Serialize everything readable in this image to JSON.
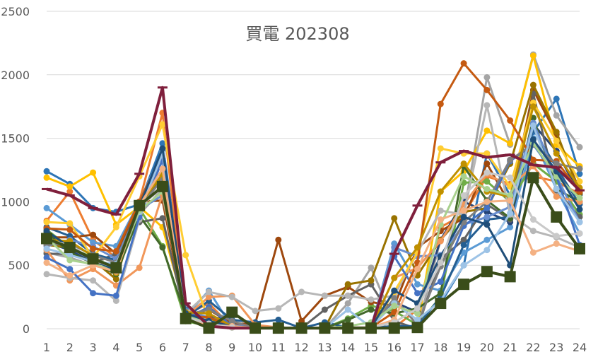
{
  "chart_data": {
    "type": "line",
    "title": "買電 202308",
    "xlabel": "",
    "ylabel": "",
    "x": [
      1,
      2,
      3,
      4,
      5,
      6,
      7,
      8,
      9,
      10,
      11,
      12,
      13,
      14,
      15,
      16,
      17,
      18,
      19,
      20,
      21,
      22,
      23,
      24
    ],
    "ylim": [
      0,
      2500
    ],
    "yticks": [
      0,
      500,
      1000,
      1500,
      2000,
      2500
    ],
    "grid": true,
    "legend": "none",
    "series": [
      {
        "color": "#2E75B6",
        "marker": "circle",
        "values": [
          1240,
          1140,
          950,
          920,
          980,
          1460,
          150,
          20,
          10,
          5,
          10,
          5,
          5,
          10,
          10,
          20,
          20,
          200,
          500,
          1380,
          1050,
          1550,
          1810,
          1220
        ]
      },
      {
        "color": "#ED7D31",
        "marker": "circle",
        "values": [
          850,
          1080,
          700,
          560,
          1000,
          1700,
          110,
          200,
          10,
          5,
          10,
          5,
          5,
          10,
          10,
          10,
          150,
          800,
          900,
          1200,
          1140,
          1200,
          1160,
          1060
        ]
      },
      {
        "color": "#A5A5A5",
        "marker": "circle",
        "values": [
          600,
          560,
          500,
          600,
          900,
          1100,
          100,
          20,
          10,
          5,
          10,
          5,
          5,
          200,
          480,
          50,
          0,
          700,
          900,
          1980,
          1450,
          2160,
          1680,
          1430
        ]
      },
      {
        "color": "#FFC000",
        "marker": "circle",
        "values": [
          1190,
          1120,
          1230,
          820,
          960,
          800,
          130,
          50,
          10,
          5,
          10,
          5,
          5,
          10,
          10,
          10,
          10,
          1080,
          1240,
          1560,
          1460,
          2150,
          1450,
          1280
        ]
      },
      {
        "color": "#5B9BD5",
        "marker": "circle",
        "values": [
          950,
          820,
          680,
          650,
          1000,
          1400,
          100,
          300,
          10,
          5,
          10,
          5,
          5,
          10,
          10,
          670,
          350,
          300,
          600,
          700,
          800,
          1500,
          1100,
          750
        ]
      },
      {
        "color": "#70AD47",
        "marker": "circle",
        "values": [
          780,
          640,
          560,
          480,
          950,
          650,
          60,
          20,
          10,
          5,
          10,
          5,
          5,
          80,
          180,
          140,
          30,
          250,
          1150,
          1160,
          1000,
          1300,
          1160,
          900
        ]
      },
      {
        "color": "#264478",
        "marker": "circle",
        "values": [
          680,
          620,
          520,
          490,
          970,
          1200,
          80,
          100,
          60,
          5,
          10,
          5,
          5,
          10,
          10,
          210,
          130,
          700,
          1000,
          920,
          840,
          1610,
          1400,
          1060
        ]
      },
      {
        "color": "#9E480E",
        "marker": "circle",
        "values": [
          720,
          720,
          740,
          590,
          1000,
          1010,
          80,
          150,
          40,
          40,
          700,
          60,
          260,
          330,
          210,
          180,
          640,
          770,
          870,
          1300,
          980,
          1880,
          1530,
          1090
        ]
      },
      {
        "color": "#636363",
        "marker": "circle",
        "values": [
          590,
          590,
          520,
          590,
          840,
          870,
          90,
          40,
          20,
          5,
          10,
          5,
          150,
          260,
          350,
          60,
          0,
          550,
          700,
          980,
          860,
          1850,
          1090,
          880
        ]
      },
      {
        "color": "#997300",
        "marker": "circle",
        "values": [
          660,
          640,
          540,
          390,
          990,
          1200,
          140,
          80,
          30,
          5,
          10,
          5,
          5,
          350,
          380,
          870,
          420,
          700,
          920,
          950,
          1300,
          1920,
          1550,
          1070
        ]
      },
      {
        "color": "#255E91",
        "marker": "circle",
        "values": [
          800,
          730,
          590,
          540,
          960,
          1120,
          90,
          220,
          70,
          50,
          70,
          5,
          50,
          10,
          10,
          20,
          20,
          250,
          660,
          860,
          880,
          1570,
          1270,
          980
        ]
      },
      {
        "color": "#43682B",
        "marker": "circle",
        "values": [
          760,
          600,
          520,
          430,
          890,
          640,
          100,
          90,
          30,
          5,
          10,
          5,
          5,
          70,
          150,
          120,
          160,
          280,
          1280,
          1010,
          870,
          1660,
          1100,
          1000
        ]
      },
      {
        "color": "#698ED0",
        "marker": "circle",
        "values": [
          650,
          700,
          650,
          550,
          940,
          1050,
          140,
          90,
          30,
          5,
          10,
          5,
          5,
          10,
          10,
          640,
          570,
          580,
          820,
          880,
          960,
          1620,
          1200,
          840
        ]
      },
      {
        "color": "#F1975A",
        "marker": "circle",
        "values": [
          620,
          380,
          470,
          340,
          480,
          1060,
          100,
          250,
          260,
          30,
          10,
          5,
          5,
          10,
          10,
          400,
          480,
          690,
          980,
          1220,
          1120,
          1280,
          1040,
          1000
        ]
      },
      {
        "color": "#B7B7B7",
        "marker": "circle",
        "values": [
          430,
          400,
          380,
          220,
          860,
          1360,
          120,
          290,
          250,
          140,
          160,
          290,
          260,
          260,
          230,
          260,
          600,
          930,
          900,
          1760,
          900,
          770,
          720,
          640
        ]
      },
      {
        "color": "#FFCD33",
        "marker": "circle",
        "values": [
          840,
          830,
          560,
          800,
          1200,
          1610,
          580,
          60,
          10,
          5,
          10,
          5,
          5,
          10,
          10,
          290,
          600,
          1420,
          1380,
          1380,
          1120,
          1780,
          1480,
          1160
        ]
      },
      {
        "color": "#4472C4",
        "marker": "circle",
        "values": [
          560,
          470,
          280,
          260,
          880,
          1330,
          80,
          170,
          20,
          5,
          10,
          5,
          5,
          10,
          10,
          570,
          280,
          370,
          810,
          950,
          1320,
          1450,
          1200,
          660
        ]
      },
      {
        "color": "#C55A11",
        "marker": "circle",
        "values": [
          790,
          780,
          630,
          610,
          1000,
          1380,
          100,
          90,
          20,
          5,
          10,
          5,
          5,
          10,
          10,
          130,
          520,
          1770,
          2090,
          1880,
          1640,
          1330,
          1320,
          1080
        ]
      },
      {
        "color": "#7F7F7F",
        "marker": "circle",
        "values": [
          660,
          670,
          580,
          520,
          950,
          1180,
          110,
          150,
          60,
          5,
          10,
          5,
          5,
          10,
          10,
          240,
          30,
          490,
          840,
          1000,
          1330,
          1450,
          1300,
          1260
        ]
      },
      {
        "color": "#BF9000",
        "marker": "circle",
        "values": [
          700,
          690,
          570,
          440,
          970,
          1220,
          130,
          120,
          20,
          5,
          10,
          5,
          5,
          10,
          10,
          400,
          640,
          1080,
          1300,
          1080,
          1040,
          1750,
          1380,
          1110
        ]
      },
      {
        "color": "#9DC3E6",
        "marker": "circle",
        "values": [
          630,
          580,
          530,
          510,
          920,
          1380,
          90,
          50,
          10,
          5,
          10,
          5,
          5,
          150,
          10,
          200,
          70,
          220,
          500,
          620,
          910,
          1600,
          1100,
          840
        ]
      },
      {
        "color": "#A9D18E",
        "marker": "circle",
        "values": [
          720,
          540,
          510,
          460,
          930,
          1080,
          100,
          60,
          20,
          5,
          10,
          5,
          5,
          20,
          50,
          180,
          120,
          820,
          1200,
          1100,
          1050,
          1460,
          1200,
          1030
        ]
      },
      {
        "color": "#1F4E79",
        "marker": "circle",
        "values": [
          770,
          640,
          540,
          460,
          960,
          1420,
          120,
          60,
          20,
          5,
          10,
          5,
          5,
          10,
          10,
          300,
          200,
          570,
          880,
          820,
          500,
          1490,
          1240,
          940
        ]
      },
      {
        "color": "#F4B183",
        "marker": "circle",
        "values": [
          520,
          420,
          500,
          450,
          970,
          1260,
          80,
          30,
          20,
          5,
          10,
          5,
          5,
          10,
          10,
          70,
          470,
          860,
          930,
          1000,
          1010,
          600,
          670,
          610
        ]
      },
      {
        "color": "#C9C9C9",
        "marker": "circle",
        "values": [
          700,
          660,
          540,
          480,
          960,
          1110,
          90,
          40,
          10,
          5,
          10,
          5,
          5,
          10,
          10,
          50,
          160,
          520,
          1050,
          1230,
          1190,
          860,
          730,
          750
        ]
      },
      {
        "color": "#7F1F3C",
        "marker": "bar",
        "values": [
          1100,
          1050,
          950,
          900,
          1220,
          1900,
          200,
          20,
          5,
          5,
          5,
          5,
          5,
          5,
          5,
          590,
          970,
          1310,
          1400,
          1350,
          1370,
          1290,
          1270,
          1090
        ]
      },
      {
        "color": "#3A4D1A",
        "marker": "square",
        "values": [
          710,
          640,
          550,
          480,
          970,
          1120,
          80,
          5,
          130,
          5,
          5,
          5,
          5,
          5,
          5,
          5,
          10,
          200,
          350,
          450,
          410,
          1190,
          880,
          630
        ]
      }
    ]
  }
}
